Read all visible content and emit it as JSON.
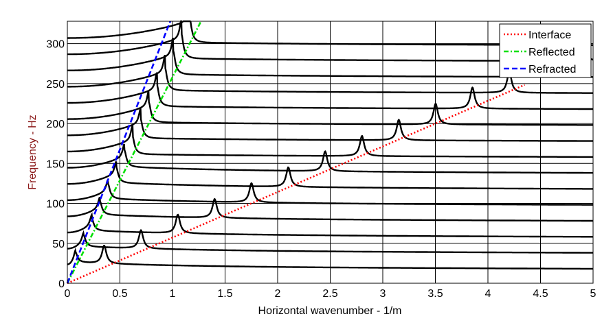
{
  "chart_data": {
    "type": "line",
    "title": "",
    "xlabel": "Horizontal wavenumber - 1/m",
    "ylabel": "Frequency - Hz",
    "xlim": [
      0,
      5
    ],
    "ylim": [
      0,
      328
    ],
    "xticks": [
      "0",
      "0.5",
      "1",
      "1.5",
      "2",
      "2.5",
      "3",
      "3.5",
      "4",
      "4.5",
      "5"
    ],
    "xtick_values": [
      0,
      0.5,
      1,
      1.5,
      2,
      2.5,
      3,
      3.5,
      4,
      4.5,
      5
    ],
    "yticks": [
      "0",
      "50",
      "100",
      "150",
      "200",
      "250",
      "300"
    ],
    "ytick_values": [
      0,
      50,
      100,
      150,
      200,
      250,
      300
    ],
    "grid": true,
    "legend_position": "top-right",
    "series": [
      {
        "name": "Interface",
        "color": "#ff0000",
        "style": "dotted",
        "slope_hz_per_inv_m": 57.1
      },
      {
        "name": "Reflected",
        "color": "#00e000",
        "style": "dashdot",
        "slope_hz_per_inv_m": 258
      },
      {
        "name": "Refracted",
        "color": "#0000ff",
        "style": "dashed",
        "slope_hz_per_inv_m": 335
      }
    ],
    "traces_frequencies_hz": [
      20,
      40,
      60,
      80,
      100,
      120,
      140,
      160,
      180,
      200,
      220,
      240,
      260,
      280,
      300
    ]
  }
}
